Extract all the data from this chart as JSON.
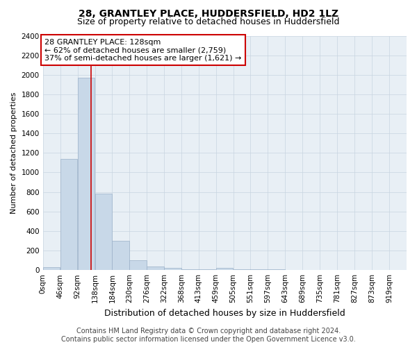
{
  "title": "28, GRANTLEY PLACE, HUDDERSFIELD, HD2 1LZ",
  "subtitle": "Size of property relative to detached houses in Huddersfield",
  "xlabel": "Distribution of detached houses by size in Huddersfield",
  "ylabel": "Number of detached properties",
  "bins": [
    0,
    46,
    92,
    138,
    184,
    230,
    276,
    322,
    368,
    413,
    459,
    505,
    551,
    597,
    643,
    689,
    735,
    781,
    827,
    873,
    919
  ],
  "bin_labels": [
    "0sqm",
    "46sqm",
    "92sqm",
    "138sqm",
    "184sqm",
    "230sqm",
    "276sqm",
    "322sqm",
    "368sqm",
    "413sqm",
    "459sqm",
    "505sqm",
    "551sqm",
    "597sqm",
    "643sqm",
    "689sqm",
    "735sqm",
    "781sqm",
    "827sqm",
    "873sqm",
    "919sqm"
  ],
  "bar_heights": [
    30,
    1140,
    1970,
    780,
    300,
    100,
    40,
    25,
    10,
    5,
    20,
    5,
    5,
    5,
    0,
    0,
    0,
    0,
    0,
    0
  ],
  "bar_color": "#c8d8e8",
  "bar_edge_color": "#9ab0c8",
  "grid_color": "#c8d4e0",
  "plot_bg_color": "#e8eff5",
  "property_size": 128,
  "red_line_color": "#cc0000",
  "annotation_text_line1": "28 GRANTLEY PLACE: 128sqm",
  "annotation_text_line2": "← 62% of detached houses are smaller (2,759)",
  "annotation_text_line3": "37% of semi-detached houses are larger (1,621) →",
  "annotation_box_color": "#cc0000",
  "ylim": [
    0,
    2400
  ],
  "yticks": [
    0,
    200,
    400,
    600,
    800,
    1000,
    1200,
    1400,
    1600,
    1800,
    2000,
    2200,
    2400
  ],
  "footer_line1": "Contains HM Land Registry data © Crown copyright and database right 2024.",
  "footer_line2": "Contains public sector information licensed under the Open Government Licence v3.0.",
  "title_fontsize": 10,
  "subtitle_fontsize": 9,
  "xlabel_fontsize": 9,
  "ylabel_fontsize": 8,
  "tick_fontsize": 7.5,
  "footer_fontsize": 7,
  "annotation_fontsize": 8,
  "background_color": "#ffffff",
  "bin_width": 46,
  "xlim_max": 965
}
